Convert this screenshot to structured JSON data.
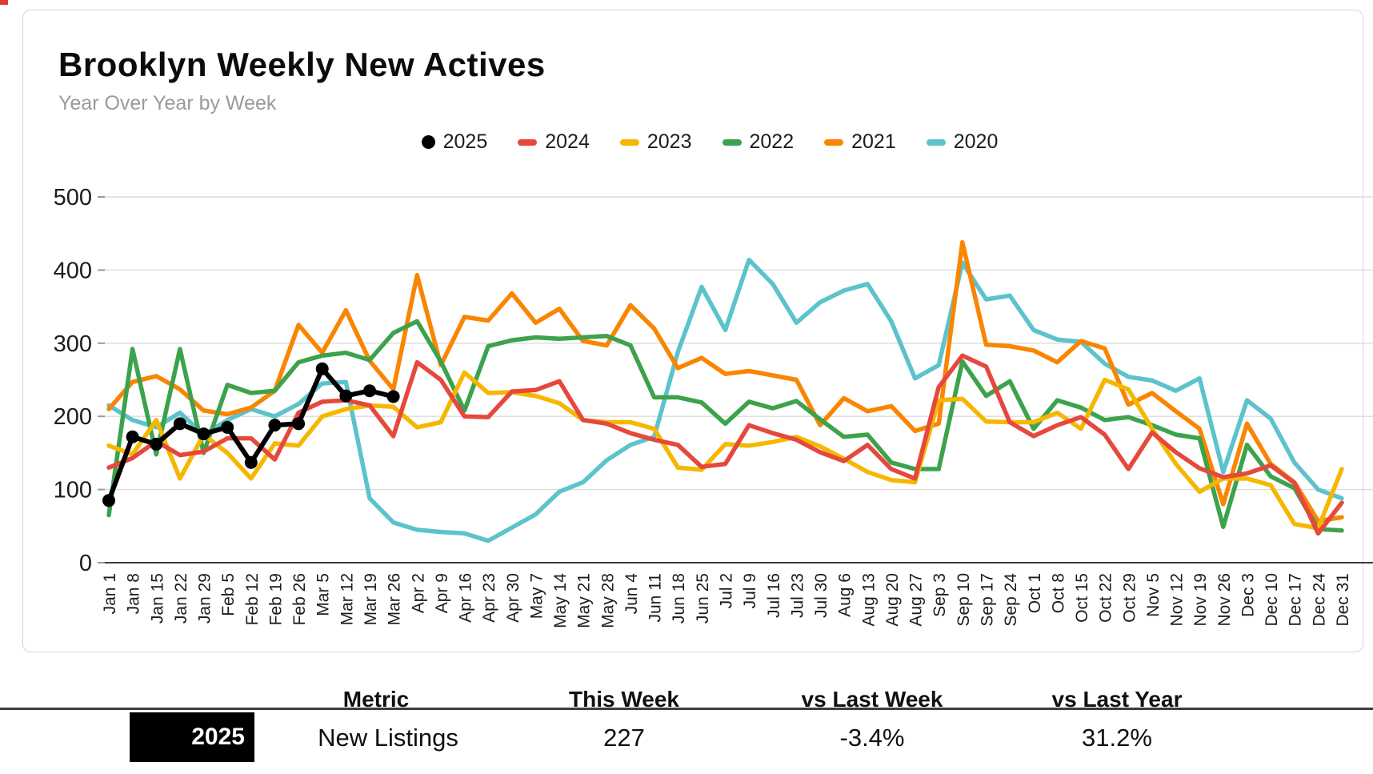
{
  "card": {
    "title": "Brooklyn Weekly New Actives",
    "subtitle": "Year Over Year by Week"
  },
  "chart_data": {
    "type": "line",
    "title": "Brooklyn Weekly New Actives",
    "subtitle": "Year Over Year by Week",
    "grid": true,
    "legend_position": "top",
    "ylim": [
      0,
      500
    ],
    "yticks": [
      0,
      100,
      200,
      300,
      400,
      500
    ],
    "x_labels": [
      "Jan 1",
      "Jan 8",
      "Jan 15",
      "Jan 22",
      "Jan 29",
      "Feb 5",
      "Feb 12",
      "Feb 19",
      "Feb 26",
      "Mar 5",
      "Mar 12",
      "Mar 19",
      "Mar 26",
      "Apr 2",
      "Apr 9",
      "Apr 16",
      "Apr 23",
      "Apr 30",
      "May 7",
      "May 14",
      "May 21",
      "May 28",
      "Jun 4",
      "Jun 11",
      "Jun 18",
      "Jun 25",
      "Jul 2",
      "Jul 9",
      "Jul 16",
      "Jul 23",
      "Jul 30",
      "Aug 6",
      "Aug 13",
      "Aug 20",
      "Aug 27",
      "Sep 3",
      "Sep 10",
      "Sep 17",
      "Sep 24",
      "Oct 1",
      "Oct 8",
      "Oct 15",
      "Oct 22",
      "Oct 29",
      "Nov 5",
      "Nov 12",
      "Nov 19",
      "Nov 26",
      "Dec 3",
      "Dec 10",
      "Dec 17",
      "Dec 24",
      "Dec 31"
    ],
    "series": [
      {
        "name": "2020",
        "color": "#5cc3cd",
        "style": "line",
        "values": [
          215,
          195,
          185,
          205,
          175,
          195,
          210,
          200,
          217,
          245,
          247,
          88,
          55,
          45,
          42,
          40,
          30,
          48,
          66,
          97,
          110,
          140,
          161,
          172,
          288,
          377,
          318,
          414,
          381,
          328,
          356,
          372,
          381,
          330,
          252,
          270,
          410,
          360,
          365,
          318,
          305,
          302,
          272,
          254,
          249,
          235,
          252,
          124,
          222,
          197,
          137,
          100,
          88
        ]
      },
      {
        "name": "2021",
        "color": "#fa8500",
        "style": "line",
        "values": [
          210,
          247,
          255,
          237,
          208,
          203,
          212,
          235,
          325,
          287,
          345,
          276,
          237,
          393,
          270,
          336,
          331,
          368,
          328,
          347,
          303,
          297,
          352,
          320,
          266,
          280,
          258,
          262,
          256,
          250,
          188,
          225,
          207,
          214,
          180,
          190,
          438,
          298,
          296,
          290,
          274,
          303,
          293,
          216,
          232,
          207,
          183,
          80,
          190,
          135,
          110,
          57,
          62
        ]
      },
      {
        "name": "2022",
        "color": "#3da24c",
        "style": "line",
        "values": [
          65,
          292,
          148,
          292,
          150,
          243,
          232,
          235,
          274,
          283,
          287,
          277,
          314,
          330,
          275,
          208,
          296,
          304,
          308,
          306,
          308,
          310,
          297,
          226,
          226,
          219,
          190,
          220,
          211,
          221,
          196,
          172,
          175,
          137,
          128,
          128,
          275,
          228,
          248,
          183,
          222,
          212,
          195,
          199,
          188,
          175,
          170,
          49,
          161,
          118,
          102,
          46,
          44
        ]
      },
      {
        "name": "2023",
        "color": "#f6b700",
        "style": "line",
        "values": [
          160,
          148,
          195,
          115,
          175,
          150,
          115,
          163,
          160,
          200,
          210,
          215,
          213,
          185,
          192,
          260,
          232,
          233,
          228,
          218,
          195,
          192,
          192,
          183,
          130,
          127,
          162,
          160,
          165,
          172,
          159,
          142,
          124,
          113,
          110,
          222,
          224,
          193,
          192,
          192,
          205,
          183,
          250,
          237,
          183,
          135,
          97,
          115,
          115,
          106,
          53,
          47,
          128
        ]
      },
      {
        "name": "2024",
        "color": "#e5483d",
        "style": "line",
        "values": [
          130,
          143,
          166,
          147,
          152,
          170,
          170,
          141,
          205,
          220,
          222,
          215,
          173,
          274,
          250,
          200,
          199,
          234,
          236,
          248,
          195,
          190,
          177,
          168,
          161,
          131,
          135,
          188,
          177,
          168,
          151,
          139,
          161,
          128,
          115,
          240,
          283,
          268,
          192,
          173,
          188,
          199,
          175,
          128,
          178,
          151,
          129,
          117,
          122,
          133,
          109,
          40,
          82
        ]
      },
      {
        "name": "2025",
        "color": "#000000",
        "style": "line+dots",
        "values": [
          85,
          172,
          162,
          190,
          176,
          185,
          137,
          188,
          190,
          265,
          228,
          235,
          227
        ]
      }
    ],
    "legend_order": [
      "2025",
      "2024",
      "2023",
      "2022",
      "2021",
      "2020"
    ]
  },
  "table": {
    "headers": [
      "Metric",
      "This Week",
      "vs Last Week",
      "vs Last Year"
    ],
    "row": {
      "year": "2025",
      "metric": "New Listings",
      "this_week": "227",
      "vs_last_week": "-3.4%",
      "vs_last_year": "31.2%"
    }
  }
}
